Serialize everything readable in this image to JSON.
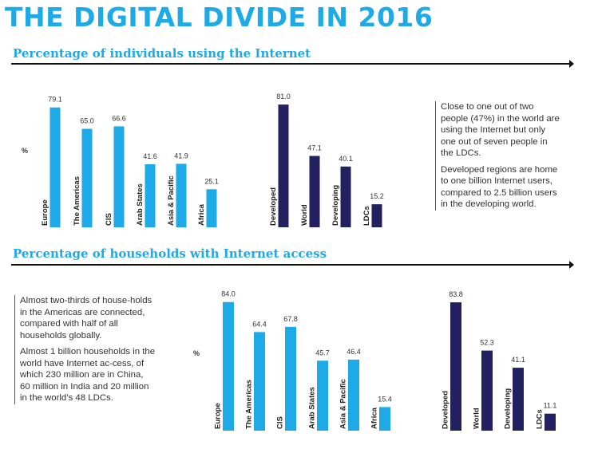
{
  "header": {
    "title": "THE DIGITAL DIVIDE IN 2016"
  },
  "colors": {
    "accent": "#1eaae7",
    "region_bar": "#1eaae7",
    "development_bar": "#22205e"
  },
  "chart_data": [
    {
      "type": "bar",
      "title": "Percentage of individuals using the Internet",
      "ylabel": "%",
      "ylim": [
        0,
        100
      ],
      "groups": [
        {
          "categories": [
            "Europe",
            "The Americas",
            "CIS",
            "Arab States",
            "Asia & Pacific",
            "Africa"
          ],
          "values": [
            79.1,
            65.0,
            66.6,
            41.6,
            41.9,
            25.1
          ],
          "color": "#1eaae7"
        },
        {
          "categories": [
            "Developed",
            "World",
            "Developing",
            "LDCs"
          ],
          "values": [
            81.0,
            47.1,
            40.1,
            15.2
          ],
          "color": "#22205e"
        }
      ],
      "note": [
        "Close to one out of two people (47%) in the world are using the Internet but only one out of seven people in the LDCs.",
        "Developed regions are home to one billion Internet users, compared to 2.5 billion users in the developing world."
      ]
    },
    {
      "type": "bar",
      "title": "Percentage of households with Internet access",
      "ylabel": "%",
      "ylim": [
        0,
        100
      ],
      "groups": [
        {
          "categories": [
            "Europe",
            "The Americas",
            "CIS",
            "Arab States",
            "Asia & Pacific",
            "Africa"
          ],
          "values": [
            84.0,
            64.4,
            67.8,
            45.7,
            46.4,
            15.4
          ],
          "color": "#1eaae7"
        },
        {
          "categories": [
            "Developed",
            "World",
            "Developing",
            "LDCs"
          ],
          "values": [
            83.8,
            52.3,
            41.1,
            11.1
          ],
          "color": "#22205e"
        }
      ],
      "note": [
        "Almost two-thirds of house-holds in the Americas are connected, compared with half of all households globally.",
        "Almost 1 billion households in the world have Internet ac-cess, of which 230 million are in China, 60 million in India and 20 million in the world’s 48 LDCs."
      ]
    }
  ]
}
